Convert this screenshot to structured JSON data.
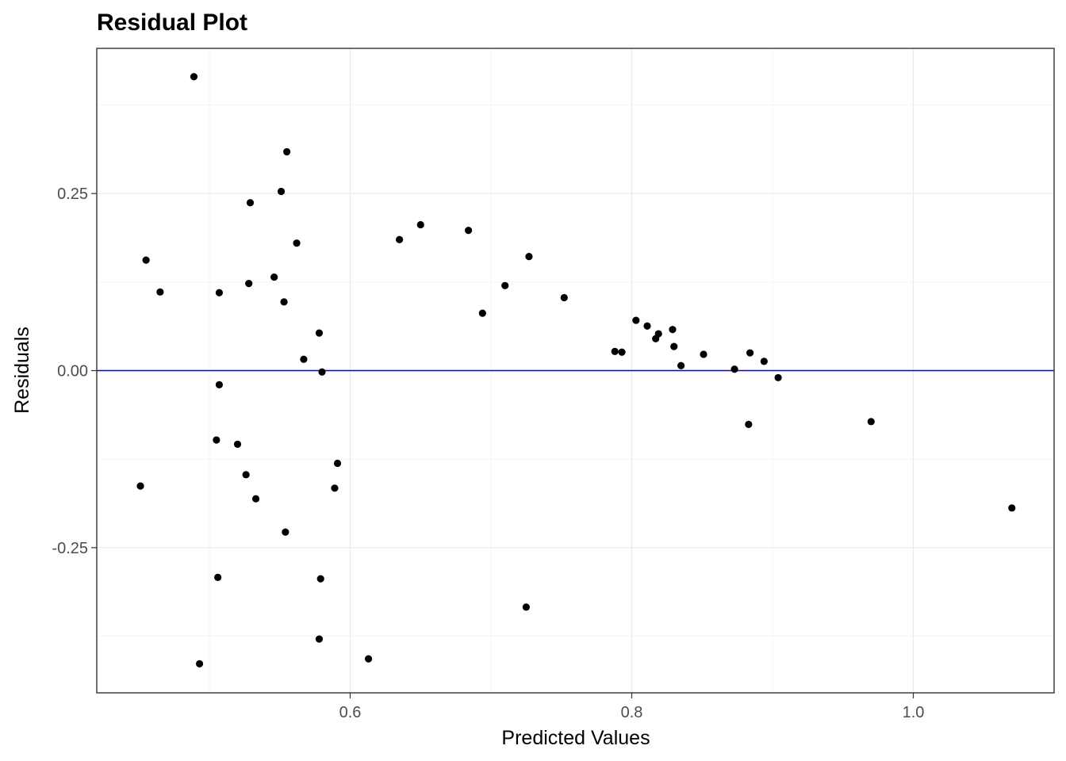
{
  "chart_data": {
    "type": "scatter",
    "title": "Residual Plot",
    "xlabel": "Predicted Values",
    "ylabel": "Residuals",
    "xlim": [
      0.42,
      1.1
    ],
    "ylim": [
      -0.455,
      0.455
    ],
    "x_ticks": [
      0.6,
      0.8,
      1.0
    ],
    "x_tick_labels": [
      "0.6",
      "0.8",
      "1.0"
    ],
    "x_minor_ticks": [
      0.5,
      0.7,
      0.9
    ],
    "y_ticks": [
      -0.25,
      0.0,
      0.25
    ],
    "y_tick_labels": [
      "-0.25",
      "0.00",
      "0.25"
    ],
    "y_minor_ticks": [
      -0.375,
      -0.125,
      0.125,
      0.375
    ],
    "grid": true,
    "reference_line": {
      "y": 0,
      "color": "#0000ff"
    },
    "point_color": "#000000",
    "points": [
      {
        "x": 0.489,
        "y": 0.415
      },
      {
        "x": 0.555,
        "y": 0.309
      },
      {
        "x": 0.551,
        "y": 0.253
      },
      {
        "x": 0.529,
        "y": 0.237
      },
      {
        "x": 0.65,
        "y": 0.206
      },
      {
        "x": 0.684,
        "y": 0.198
      },
      {
        "x": 0.635,
        "y": 0.185
      },
      {
        "x": 0.562,
        "y": 0.18
      },
      {
        "x": 0.727,
        "y": 0.161
      },
      {
        "x": 0.455,
        "y": 0.156
      },
      {
        "x": 0.546,
        "y": 0.132
      },
      {
        "x": 0.528,
        "y": 0.123
      },
      {
        "x": 0.71,
        "y": 0.12
      },
      {
        "x": 0.465,
        "y": 0.111
      },
      {
        "x": 0.507,
        "y": 0.11
      },
      {
        "x": 0.752,
        "y": 0.103
      },
      {
        "x": 0.553,
        "y": 0.097
      },
      {
        "x": 0.694,
        "y": 0.081
      },
      {
        "x": 0.803,
        "y": 0.071
      },
      {
        "x": 0.811,
        "y": 0.063
      },
      {
        "x": 0.829,
        "y": 0.058
      },
      {
        "x": 0.578,
        "y": 0.053
      },
      {
        "x": 0.819,
        "y": 0.052
      },
      {
        "x": 0.817,
        "y": 0.045
      },
      {
        "x": 0.83,
        "y": 0.034
      },
      {
        "x": 0.788,
        "y": 0.027
      },
      {
        "x": 0.793,
        "y": 0.026
      },
      {
        "x": 0.884,
        "y": 0.025
      },
      {
        "x": 0.851,
        "y": 0.023
      },
      {
        "x": 0.567,
        "y": 0.016
      },
      {
        "x": 0.894,
        "y": 0.013
      },
      {
        "x": 0.835,
        "y": 0.007
      },
      {
        "x": 0.873,
        "y": 0.002
      },
      {
        "x": 0.58,
        "y": -0.002
      },
      {
        "x": 0.904,
        "y": -0.01
      },
      {
        "x": 0.507,
        "y": -0.02
      },
      {
        "x": 0.97,
        "y": -0.072
      },
      {
        "x": 0.883,
        "y": -0.076
      },
      {
        "x": 0.505,
        "y": -0.098
      },
      {
        "x": 0.52,
        "y": -0.104
      },
      {
        "x": 0.591,
        "y": -0.131
      },
      {
        "x": 0.526,
        "y": -0.147
      },
      {
        "x": 0.451,
        "y": -0.163
      },
      {
        "x": 0.589,
        "y": -0.166
      },
      {
        "x": 0.533,
        "y": -0.181
      },
      {
        "x": 1.07,
        "y": -0.194
      },
      {
        "x": 0.554,
        "y": -0.228
      },
      {
        "x": 0.506,
        "y": -0.292
      },
      {
        "x": 0.579,
        "y": -0.294
      },
      {
        "x": 0.725,
        "y": -0.334
      },
      {
        "x": 0.578,
        "y": -0.379
      },
      {
        "x": 0.613,
        "y": -0.407
      },
      {
        "x": 0.493,
        "y": -0.414
      }
    ]
  }
}
